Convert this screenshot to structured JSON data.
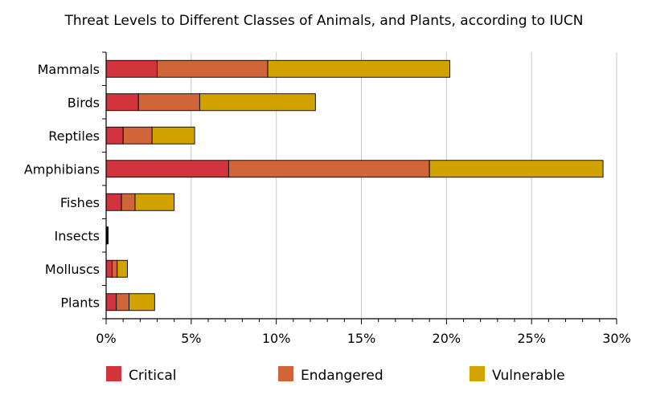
{
  "chart_data": {
    "type": "bar",
    "orientation": "horizontal",
    "stacked": true,
    "title": "Threat Levels to Different Classes of Animals, and Plants, according to IUCN",
    "xlabel": "",
    "ylabel": "",
    "xlim": [
      0,
      30
    ],
    "x_ticks": [
      "0%",
      "5%",
      "10%",
      "15%",
      "20%",
      "25%",
      "30%"
    ],
    "categories": [
      "Mammals",
      "Birds",
      "Reptiles",
      "Amphibians",
      "Fishes",
      "Insects",
      "Molluscs",
      "Plants"
    ],
    "series": [
      {
        "name": "Critical",
        "color": "#d1343c",
        "values": [
          3.0,
          1.9,
          1.0,
          7.2,
          0.9,
          0.05,
          0.35,
          0.6
        ]
      },
      {
        "name": "Endangered",
        "color": "#cf6538",
        "values": [
          6.5,
          3.6,
          1.7,
          11.8,
          0.8,
          0.03,
          0.3,
          0.75
        ]
      },
      {
        "name": "Vulnerable",
        "color": "#d2a200",
        "values": [
          10.7,
          6.8,
          2.5,
          10.2,
          2.3,
          0.02,
          0.6,
          1.5
        ]
      }
    ],
    "grid": "vertical",
    "legend_position": "bottom"
  }
}
